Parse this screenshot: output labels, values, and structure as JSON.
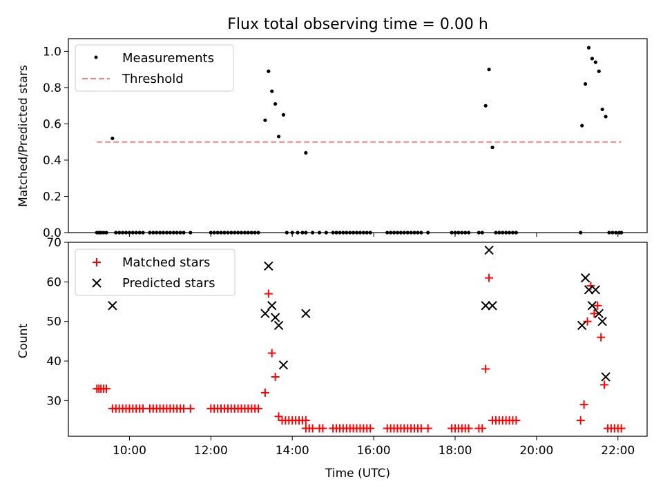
{
  "chart_data": [
    {
      "type": "scatter",
      "title": "Flux total observing time = 0.00 h",
      "xlabel": "",
      "ylabel": "Matched/Predicted stars",
      "xlim": [
        "08:30",
        "22:43"
      ],
      "ylim": [
        0,
        1.07
      ],
      "yticks": [
        0.0,
        0.2,
        0.4,
        0.6,
        0.8,
        1.0
      ],
      "yticklabels": [
        "0.0",
        "0.2",
        "0.4",
        "0.6",
        "0.8",
        "1.0"
      ],
      "grid": false,
      "legend": {
        "position": "top-left",
        "entries": [
          {
            "label": "Measurements",
            "marker": "dot",
            "color": "#000000"
          },
          {
            "label": "Threshold",
            "marker": "dashed-line",
            "color": "#ff7f7f"
          }
        ]
      },
      "series": [
        {
          "name": "Measurements",
          "points": [
            [
              "09:12",
              0
            ],
            [
              "09:15",
              0
            ],
            [
              "09:18",
              0
            ],
            [
              "09:22",
              0
            ],
            [
              "09:26",
              0
            ],
            [
              "09:35",
              0.52
            ],
            [
              "09:40",
              0
            ],
            [
              "09:45",
              0
            ],
            [
              "09:50",
              0
            ],
            [
              "09:55",
              0
            ],
            [
              "10:00",
              0
            ],
            [
              "10:05",
              0
            ],
            [
              "10:10",
              0
            ],
            [
              "10:15",
              0
            ],
            [
              "10:20",
              0
            ],
            [
              "10:30",
              0
            ],
            [
              "10:35",
              0
            ],
            [
              "10:40",
              0
            ],
            [
              "10:45",
              0
            ],
            [
              "10:50",
              0
            ],
            [
              "10:55",
              0
            ],
            [
              "11:00",
              0
            ],
            [
              "11:05",
              0
            ],
            [
              "11:10",
              0
            ],
            [
              "11:15",
              0
            ],
            [
              "11:20",
              0
            ],
            [
              "11:30",
              0
            ],
            [
              "12:00",
              0
            ],
            [
              "12:05",
              0
            ],
            [
              "12:10",
              0
            ],
            [
              "12:15",
              0
            ],
            [
              "12:20",
              0
            ],
            [
              "12:25",
              0
            ],
            [
              "12:30",
              0
            ],
            [
              "12:35",
              0
            ],
            [
              "12:40",
              0
            ],
            [
              "12:45",
              0
            ],
            [
              "12:50",
              0
            ],
            [
              "12:55",
              0
            ],
            [
              "13:00",
              0
            ],
            [
              "13:05",
              0
            ],
            [
              "13:10",
              0
            ],
            [
              "13:20",
              0.62
            ],
            [
              "13:25",
              0.89
            ],
            [
              "13:30",
              0.78
            ],
            [
              "13:35",
              0.71
            ],
            [
              "13:40",
              0.53
            ],
            [
              "13:47",
              0.65
            ],
            [
              "13:52",
              0
            ],
            [
              "14:00",
              0
            ],
            [
              "14:08",
              0
            ],
            [
              "14:15",
              0
            ],
            [
              "14:20",
              0
            ],
            [
              "14:20",
              0.44
            ],
            [
              "14:30",
              0
            ],
            [
              "14:40",
              0
            ],
            [
              "14:50",
              0
            ],
            [
              "15:00",
              0
            ],
            [
              "15:05",
              0
            ],
            [
              "15:10",
              0
            ],
            [
              "15:15",
              0
            ],
            [
              "15:20",
              0
            ],
            [
              "15:25",
              0
            ],
            [
              "15:30",
              0
            ],
            [
              "15:35",
              0
            ],
            [
              "15:40",
              0
            ],
            [
              "15:45",
              0
            ],
            [
              "15:50",
              0
            ],
            [
              "15:55",
              0
            ],
            [
              "16:20",
              0
            ],
            [
              "16:25",
              0
            ],
            [
              "16:30",
              0
            ],
            [
              "16:35",
              0
            ],
            [
              "16:40",
              0
            ],
            [
              "16:45",
              0
            ],
            [
              "16:50",
              0
            ],
            [
              "16:55",
              0
            ],
            [
              "17:00",
              0
            ],
            [
              "17:05",
              0
            ],
            [
              "17:10",
              0
            ],
            [
              "17:20",
              0
            ],
            [
              "17:55",
              0
            ],
            [
              "18:00",
              0
            ],
            [
              "18:05",
              0
            ],
            [
              "18:10",
              0
            ],
            [
              "18:15",
              0
            ],
            [
              "18:20",
              0
            ],
            [
              "18:35",
              0
            ],
            [
              "18:40",
              0
            ],
            [
              "18:45",
              0.7
            ],
            [
              "18:50",
              0.9
            ],
            [
              "18:55",
              0.47
            ],
            [
              "19:00",
              0
            ],
            [
              "19:05",
              0
            ],
            [
              "19:10",
              0
            ],
            [
              "19:15",
              0
            ],
            [
              "19:20",
              0
            ],
            [
              "19:25",
              0
            ],
            [
              "19:30",
              0
            ],
            [
              "21:05",
              0
            ],
            [
              "21:07",
              0.59
            ],
            [
              "21:12",
              0.82
            ],
            [
              "21:17",
              1.02
            ],
            [
              "21:22",
              0.96
            ],
            [
              "21:27",
              0.94
            ],
            [
              "21:32",
              0.89
            ],
            [
              "21:37",
              0.68
            ],
            [
              "21:42",
              0.64
            ],
            [
              "21:47",
              0
            ],
            [
              "21:52",
              0
            ],
            [
              "21:57",
              0
            ],
            [
              "22:02",
              0
            ],
            [
              "22:05",
              0
            ]
          ]
        },
        {
          "name": "Threshold",
          "points": [
            [
              "09:12",
              0.5
            ],
            [
              "22:05",
              0.5
            ]
          ]
        }
      ]
    },
    {
      "type": "scatter",
      "title": "",
      "xlabel": "Time (UTC)",
      "ylabel": "Count",
      "xlim": [
        "08:30",
        "22:43"
      ],
      "ylim": [
        21,
        70
      ],
      "xticks": [
        "10:00",
        "12:00",
        "14:00",
        "16:00",
        "18:00",
        "20:00",
        "22:00"
      ],
      "yticks": [
        30,
        40,
        50,
        60,
        70
      ],
      "yticklabels": [
        "30",
        "40",
        "50",
        "60",
        "70"
      ],
      "grid": false,
      "legend": {
        "position": "top-left",
        "entries": [
          {
            "label": "Matched stars",
            "marker": "plus",
            "color": "#ff0000"
          },
          {
            "label": "Predicted stars",
            "marker": "x",
            "color": "#000000"
          }
        ]
      },
      "series": [
        {
          "name": "Matched stars",
          "points": [
            [
              "09:12",
              33
            ],
            [
              "09:15",
              33
            ],
            [
              "09:18",
              33
            ],
            [
              "09:22",
              33
            ],
            [
              "09:26",
              33
            ],
            [
              "09:35",
              28
            ],
            [
              "09:40",
              28
            ],
            [
              "09:45",
              28
            ],
            [
              "09:50",
              28
            ],
            [
              "09:55",
              28
            ],
            [
              "10:00",
              28
            ],
            [
              "10:05",
              28
            ],
            [
              "10:10",
              28
            ],
            [
              "10:15",
              28
            ],
            [
              "10:20",
              28
            ],
            [
              "10:30",
              28
            ],
            [
              "10:35",
              28
            ],
            [
              "10:40",
              28
            ],
            [
              "10:45",
              28
            ],
            [
              "10:50",
              28
            ],
            [
              "10:55",
              28
            ],
            [
              "11:00",
              28
            ],
            [
              "11:05",
              28
            ],
            [
              "11:10",
              28
            ],
            [
              "11:15",
              28
            ],
            [
              "11:20",
              28
            ],
            [
              "11:30",
              28
            ],
            [
              "12:00",
              28
            ],
            [
              "12:05",
              28
            ],
            [
              "12:10",
              28
            ],
            [
              "12:15",
              28
            ],
            [
              "12:20",
              28
            ],
            [
              "12:25",
              28
            ],
            [
              "12:30",
              28
            ],
            [
              "12:35",
              28
            ],
            [
              "12:40",
              28
            ],
            [
              "12:45",
              28
            ],
            [
              "12:50",
              28
            ],
            [
              "12:55",
              28
            ],
            [
              "13:00",
              28
            ],
            [
              "13:05",
              28
            ],
            [
              "13:10",
              28
            ],
            [
              "13:20",
              32
            ],
            [
              "13:25",
              57
            ],
            [
              "13:30",
              42
            ],
            [
              "13:35",
              36
            ],
            [
              "13:40",
              26
            ],
            [
              "13:45",
              25
            ],
            [
              "13:50",
              25
            ],
            [
              "13:55",
              25
            ],
            [
              "14:00",
              25
            ],
            [
              "14:05",
              25
            ],
            [
              "14:10",
              25
            ],
            [
              "14:15",
              25
            ],
            [
              "14:20",
              25
            ],
            [
              "14:20",
              23
            ],
            [
              "14:25",
              23
            ],
            [
              "14:30",
              23
            ],
            [
              "14:40",
              23
            ],
            [
              "14:45",
              23
            ],
            [
              "15:00",
              23
            ],
            [
              "15:05",
              23
            ],
            [
              "15:10",
              23
            ],
            [
              "15:15",
              23
            ],
            [
              "15:20",
              23
            ],
            [
              "15:25",
              23
            ],
            [
              "15:30",
              23
            ],
            [
              "15:35",
              23
            ],
            [
              "15:40",
              23
            ],
            [
              "15:45",
              23
            ],
            [
              "15:50",
              23
            ],
            [
              "15:55",
              23
            ],
            [
              "16:20",
              23
            ],
            [
              "16:25",
              23
            ],
            [
              "16:30",
              23
            ],
            [
              "16:35",
              23
            ],
            [
              "16:40",
              23
            ],
            [
              "16:45",
              23
            ],
            [
              "16:50",
              23
            ],
            [
              "16:55",
              23
            ],
            [
              "17:00",
              23
            ],
            [
              "17:05",
              23
            ],
            [
              "17:10",
              23
            ],
            [
              "17:20",
              23
            ],
            [
              "17:55",
              23
            ],
            [
              "18:00",
              23
            ],
            [
              "18:05",
              23
            ],
            [
              "18:10",
              23
            ],
            [
              "18:15",
              23
            ],
            [
              "18:20",
              23
            ],
            [
              "18:35",
              23
            ],
            [
              "18:40",
              23
            ],
            [
              "18:45",
              38
            ],
            [
              "18:50",
              61
            ],
            [
              "18:55",
              25
            ],
            [
              "19:00",
              25
            ],
            [
              "19:05",
              25
            ],
            [
              "19:10",
              25
            ],
            [
              "19:15",
              25
            ],
            [
              "19:20",
              25
            ],
            [
              "19:25",
              25
            ],
            [
              "19:30",
              25
            ],
            [
              "21:05",
              25
            ],
            [
              "21:10",
              29
            ],
            [
              "21:15",
              50
            ],
            [
              "21:20",
              59
            ],
            [
              "21:25",
              52
            ],
            [
              "21:30",
              54
            ],
            [
              "21:35",
              46
            ],
            [
              "21:40",
              34
            ],
            [
              "21:45",
              23
            ],
            [
              "21:50",
              23
            ],
            [
              "21:55",
              23
            ],
            [
              "22:00",
              23
            ],
            [
              "22:05",
              23
            ]
          ]
        },
        {
          "name": "Predicted stars",
          "points": [
            [
              "09:35",
              54
            ],
            [
              "13:20",
              52
            ],
            [
              "13:25",
              64
            ],
            [
              "13:30",
              54
            ],
            [
              "13:35",
              51
            ],
            [
              "13:40",
              49
            ],
            [
              "13:47",
              39
            ],
            [
              "14:20",
              52
            ],
            [
              "18:45",
              54
            ],
            [
              "18:50",
              68
            ],
            [
              "18:55",
              54
            ],
            [
              "21:07",
              49
            ],
            [
              "21:12",
              61
            ],
            [
              "21:17",
              58
            ],
            [
              "21:22",
              54
            ],
            [
              "21:27",
              58
            ],
            [
              "21:32",
              52
            ],
            [
              "21:37",
              50
            ],
            [
              "21:42",
              36
            ]
          ]
        }
      ]
    }
  ],
  "colors": {
    "measurement": "#000000",
    "threshold": "#ff7f7f",
    "matched": "#ff0000",
    "predicted": "#000000"
  }
}
